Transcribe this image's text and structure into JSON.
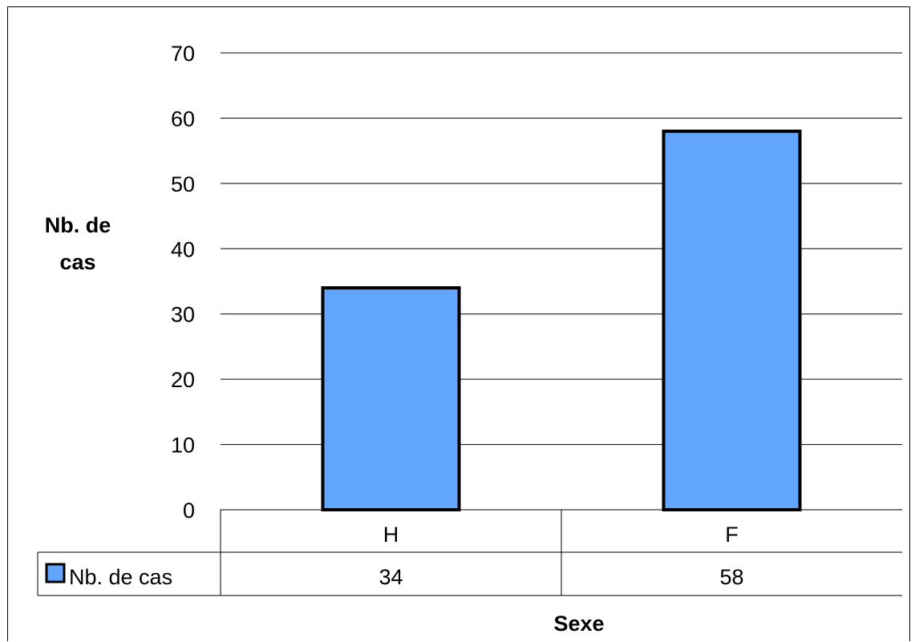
{
  "chart_data": {
    "type": "bar",
    "categories": [
      "H",
      "F"
    ],
    "series": [
      {
        "name": "Nb. de cas",
        "values": [
          34,
          58
        ],
        "color": "#63a6ff"
      }
    ],
    "title": "",
    "xlabel": "Sexe",
    "ylabel_lines": [
      "Nb. de",
      "cas"
    ],
    "ylim": [
      0,
      70
    ],
    "yticks": [
      0,
      10,
      20,
      30,
      40,
      50,
      60,
      70
    ],
    "grid": true,
    "data_table": true,
    "legend": "data-table-row"
  }
}
